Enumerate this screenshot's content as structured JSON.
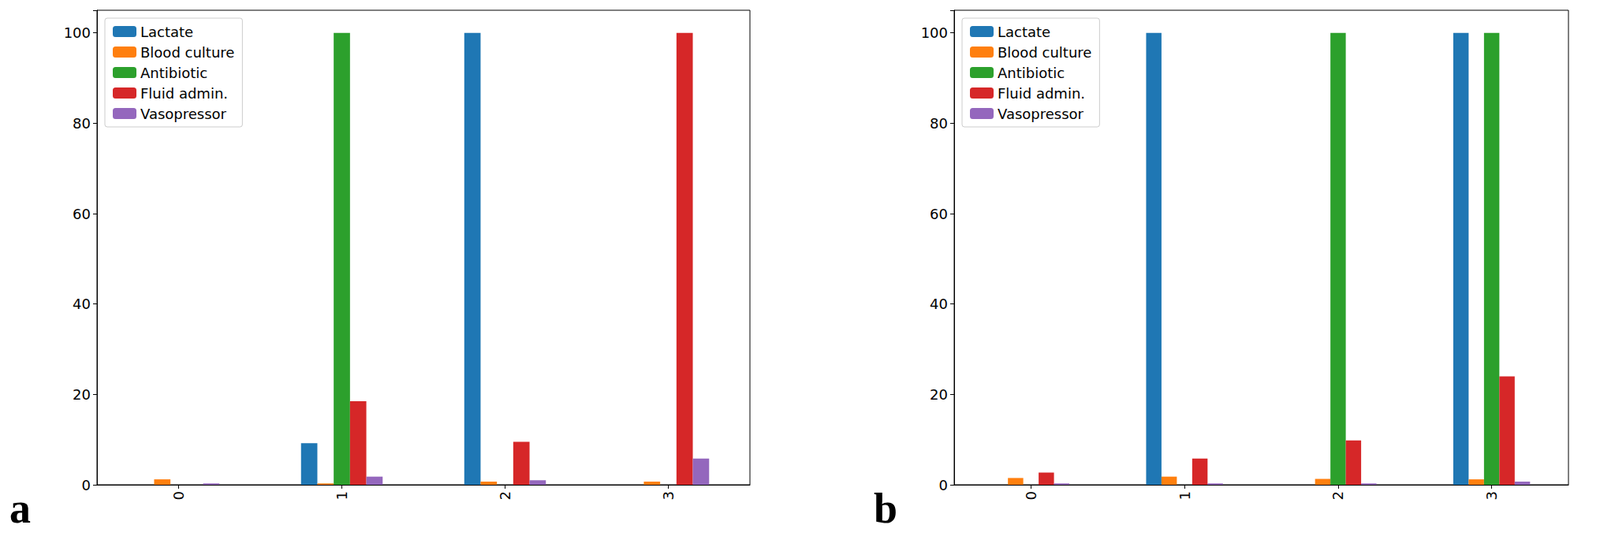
{
  "chart_data": [
    {
      "type": "bar",
      "title": "a",
      "categories": [
        "0",
        "1",
        "2",
        "3"
      ],
      "series": [
        {
          "name": "Lactate",
          "color": "#1f77b4",
          "values": [
            0,
            9.2,
            100,
            0
          ]
        },
        {
          "name": "Blood culture",
          "color": "#ff7f0e",
          "values": [
            1.2,
            0.3,
            0.7,
            0.7
          ]
        },
        {
          "name": "Antibiotic",
          "color": "#2ca02c",
          "values": [
            0,
            100,
            0,
            0
          ]
        },
        {
          "name": "Fluid admin.",
          "color": "#d62728",
          "values": [
            0,
            18.5,
            9.5,
            100
          ]
        },
        {
          "name": "Vasopressor",
          "color": "#9467bd",
          "values": [
            0.3,
            1.8,
            1.0,
            5.8
          ]
        }
      ],
      "ylim": [
        0,
        105
      ],
      "yticks": [
        0,
        20,
        40,
        60,
        80,
        100
      ],
      "legend": "upper left",
      "grid": false
    },
    {
      "type": "bar",
      "title": "b",
      "categories": [
        "0",
        "1",
        "2",
        "3"
      ],
      "series": [
        {
          "name": "Lactate",
          "color": "#1f77b4",
          "values": [
            0,
            100,
            0,
            100
          ]
        },
        {
          "name": "Blood culture",
          "color": "#ff7f0e",
          "values": [
            1.5,
            1.8,
            1.3,
            1.2
          ]
        },
        {
          "name": "Antibiotic",
          "color": "#2ca02c",
          "values": [
            0,
            0,
            100,
            100
          ]
        },
        {
          "name": "Fluid admin.",
          "color": "#d62728",
          "values": [
            2.7,
            5.8,
            9.8,
            24
          ]
        },
        {
          "name": "Vasopressor",
          "color": "#9467bd",
          "values": [
            0.3,
            0.3,
            0.3,
            0.7
          ]
        }
      ],
      "ylim": [
        0,
        105
      ],
      "yticks": [
        0,
        20,
        40,
        60,
        80,
        100
      ],
      "legend": "upper left",
      "grid": false
    }
  ]
}
